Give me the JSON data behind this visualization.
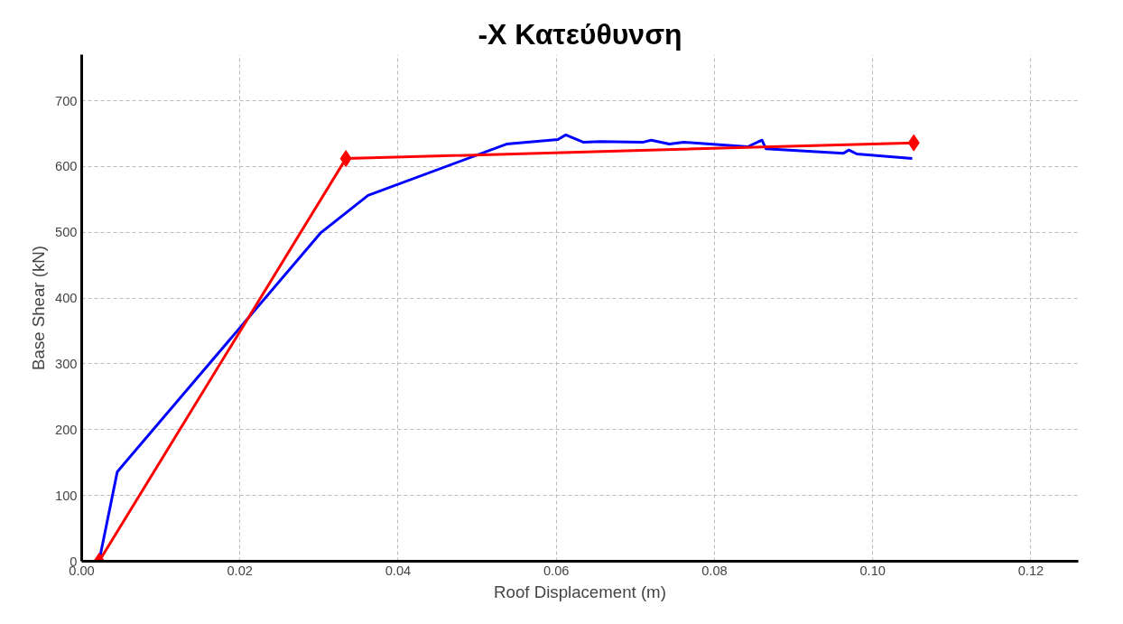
{
  "chart_data": {
    "type": "line",
    "title": "-X Κατεύθυνση",
    "xlabel": "Roof Displacement (m)",
    "ylabel": "Base Shear (kN)",
    "xlim": [
      0,
      0.126
    ],
    "ylim": [
      0,
      770
    ],
    "xticks": [
      {
        "value": 0,
        "label": "0.00"
      },
      {
        "value": 0.02,
        "label": "0.02"
      },
      {
        "value": 0.04,
        "label": "0.04"
      },
      {
        "value": 0.06,
        "label": "0.06"
      },
      {
        "value": 0.08,
        "label": "0.08"
      },
      {
        "value": 0.1,
        "label": "0.10"
      },
      {
        "value": 0.12,
        "label": "0.12"
      }
    ],
    "yticks": [
      0,
      100,
      200,
      300,
      400,
      500,
      600,
      700
    ],
    "grid": true,
    "series": [
      {
        "color": "#0000ff",
        "marker": "none",
        "x": [
          0.0022,
          0.0045,
          0.0302,
          0.0362,
          0.0537,
          0.0602,
          0.0612,
          0.0634,
          0.0656,
          0.071,
          0.072,
          0.0743,
          0.0761,
          0.0842,
          0.086,
          0.0865,
          0.0963,
          0.097,
          0.098,
          0.105
        ],
        "values": [
          0,
          136,
          499,
          556,
          634,
          641,
          648,
          637,
          638,
          637,
          640,
          634,
          637,
          630,
          640,
          627,
          620,
          625,
          619,
          612
        ]
      },
      {
        "color": "#ff0000",
        "marker": "diamond",
        "x": [
          0.0022,
          0.0334,
          0.1052
        ],
        "values": [
          0,
          612,
          636
        ]
      }
    ]
  }
}
